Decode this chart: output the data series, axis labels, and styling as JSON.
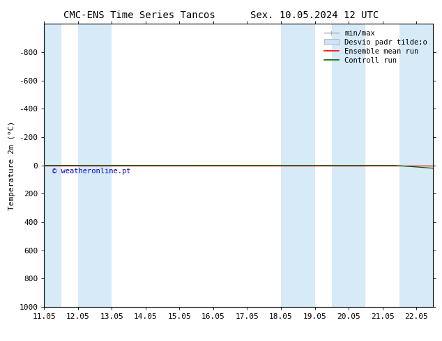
{
  "title_left": "CMC-ENS Time Series Tancos",
  "title_right": "Sex. 10.05.2024 12 UTC",
  "ylabel": "Temperature 2m (°C)",
  "xlabel": "",
  "ylim_bottom": 1000,
  "ylim_top": -1000,
  "yticks": [
    -800,
    -600,
    -400,
    -200,
    0,
    200,
    400,
    600,
    800,
    1000
  ],
  "yticklabels": [
    "-800",
    "-600",
    "-400",
    "-200",
    "0",
    "200",
    "400",
    "600",
    "800",
    "1000"
  ],
  "xlim": [
    0,
    11.5
  ],
  "xtick_labels": [
    "11.05",
    "12.05",
    "13.05",
    "14.05",
    "15.05",
    "16.05",
    "17.05",
    "18.05",
    "19.05",
    "20.05",
    "21.05",
    "22.05"
  ],
  "xtick_positions": [
    0,
    1,
    2,
    3,
    4,
    5,
    6,
    7,
    8,
    9,
    10,
    11
  ],
  "shade_bands": [
    [
      0.0,
      0.5
    ],
    [
      1.0,
      2.0
    ],
    [
      7.0,
      8.0
    ],
    [
      8.5,
      9.5
    ],
    [
      10.5,
      11.5
    ]
  ],
  "shade_color": "#d6eaf8",
  "green_line_color": "#006600",
  "red_line_color": "#ff0000",
  "watermark_text": "© weatheronline.pt",
  "watermark_color": "#0000cc",
  "legend_labels": [
    "min/max",
    "Desvio padr tilde;o",
    "Ensemble mean run",
    "Controll run"
  ],
  "legend_line_color": "#aaaaaa",
  "legend_fill_color": "#cce4f5",
  "bg_color": "#ffffff",
  "title_fontsize": 10,
  "axis_fontsize": 8,
  "tick_fontsize": 8,
  "legend_fontsize": 7.5
}
